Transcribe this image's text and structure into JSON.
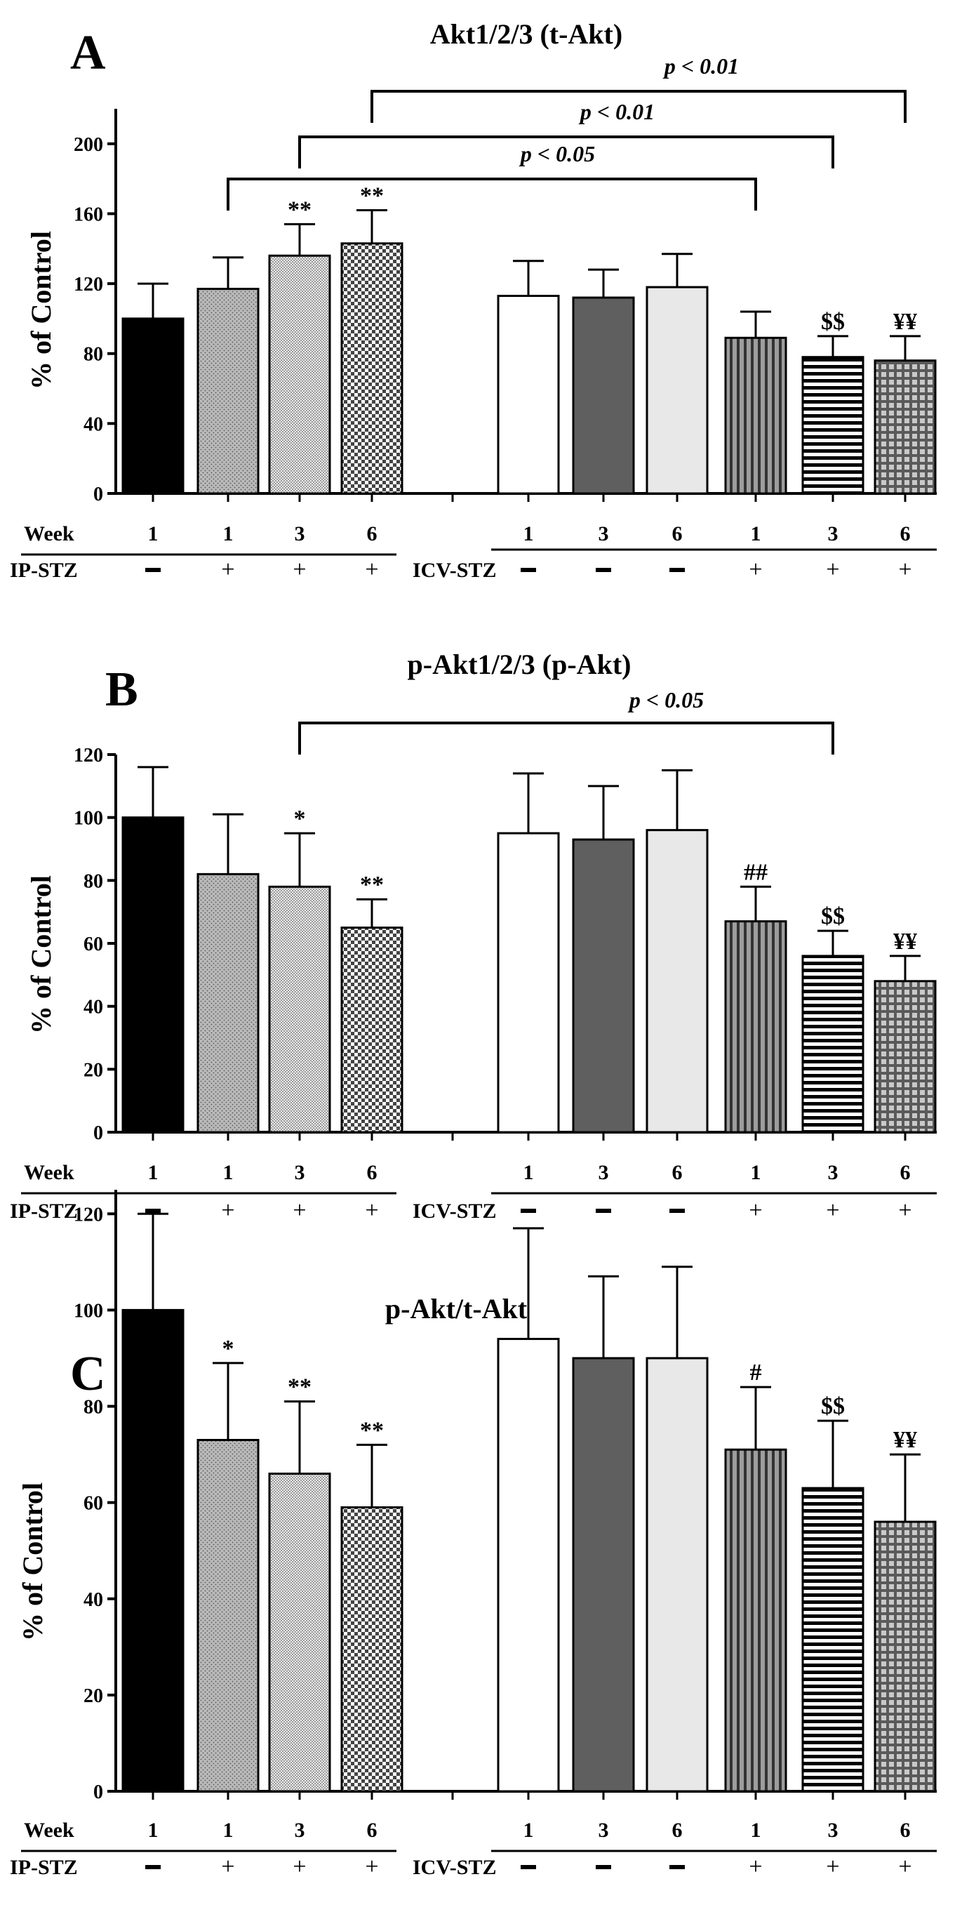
{
  "figure": {
    "panels": [
      "A",
      "B",
      "C"
    ],
    "row_labels": {
      "week": "Week",
      "ip_stz": "IP-STZ",
      "icv_stz": "ICV-STZ"
    }
  },
  "chart_data": [
    {
      "type": "bar",
      "panel": "A",
      "title": "Akt1/2/3 (t-Akt)",
      "xlabel": "",
      "ylabel": "% of Control",
      "ylim": [
        0,
        220
      ],
      "yticks": [
        0,
        40,
        80,
        120,
        160,
        200
      ],
      "weeks": [
        "1",
        "1",
        "3",
        "6",
        "1",
        "3",
        "6",
        "1",
        "3",
        "6"
      ],
      "treatment": [
        "−",
        "+",
        "+",
        "+",
        "−",
        "−",
        "−",
        "+",
        "+",
        "+"
      ],
      "series": [
        {
          "name": "% of Control",
          "values": [
            100,
            117,
            136,
            143,
            113,
            112,
            118,
            89,
            78,
            76
          ]
        }
      ],
      "errors": [
        20,
        18,
        18,
        19,
        20,
        16,
        19,
        15,
        12,
        14
      ],
      "annotations": [
        "",
        "",
        "**",
        "**",
        "",
        "",
        "",
        "",
        "$$",
        "¥¥"
      ],
      "brackets": [
        {
          "from": 1,
          "to": 7,
          "label": "p < 0.05"
        },
        {
          "from": 2,
          "to": 8,
          "label": "p < 0.01"
        },
        {
          "from": 3,
          "to": 9,
          "label": "p < 0.01"
        }
      ]
    },
    {
      "type": "bar",
      "panel": "B",
      "title": "p-Akt1/2/3 (p-Akt)",
      "xlabel": "",
      "ylabel": "% of Control",
      "ylim": [
        0,
        120
      ],
      "yticks": [
        0,
        20,
        40,
        60,
        80,
        100,
        120
      ],
      "weeks": [
        "1",
        "1",
        "3",
        "6",
        "1",
        "3",
        "6",
        "1",
        "3",
        "6"
      ],
      "treatment": [
        "−",
        "+",
        "+",
        "+",
        "−",
        "−",
        "−",
        "+",
        "+",
        "+"
      ],
      "series": [
        {
          "name": "% of Control",
          "values": [
            100,
            82,
            78,
            65,
            95,
            93,
            96,
            67,
            56,
            48
          ]
        }
      ],
      "errors": [
        16,
        19,
        17,
        9,
        19,
        17,
        19,
        11,
        8,
        8
      ],
      "annotations": [
        "",
        "",
        "*",
        "**",
        "",
        "",
        "",
        "##",
        "$$",
        "¥¥"
      ],
      "brackets": [
        {
          "from": 2,
          "to": 8,
          "label": "p < 0.05"
        }
      ]
    },
    {
      "type": "bar",
      "panel": "C",
      "title": "p-Akt/t-Akt",
      "xlabel": "",
      "ylabel": "% of Control",
      "ylim": [
        0,
        125
      ],
      "yticks": [
        0,
        20,
        40,
        60,
        80,
        100,
        120
      ],
      "weeks": [
        "1",
        "1",
        "3",
        "6",
        "1",
        "3",
        "6",
        "1",
        "3",
        "6"
      ],
      "treatment": [
        "−",
        "+",
        "+",
        "+",
        "−",
        "−",
        "−",
        "+",
        "+",
        "+"
      ],
      "series": [
        {
          "name": "% of Control",
          "values": [
            100,
            73,
            66,
            59,
            94,
            90,
            90,
            71,
            63,
            56
          ]
        }
      ],
      "errors": [
        20,
        16,
        15,
        13,
        23,
        17,
        19,
        13,
        14,
        14
      ],
      "annotations": [
        "",
        "*",
        "**",
        "**",
        "",
        "",
        "",
        "#",
        "$$",
        "¥¥"
      ],
      "brackets": []
    }
  ]
}
